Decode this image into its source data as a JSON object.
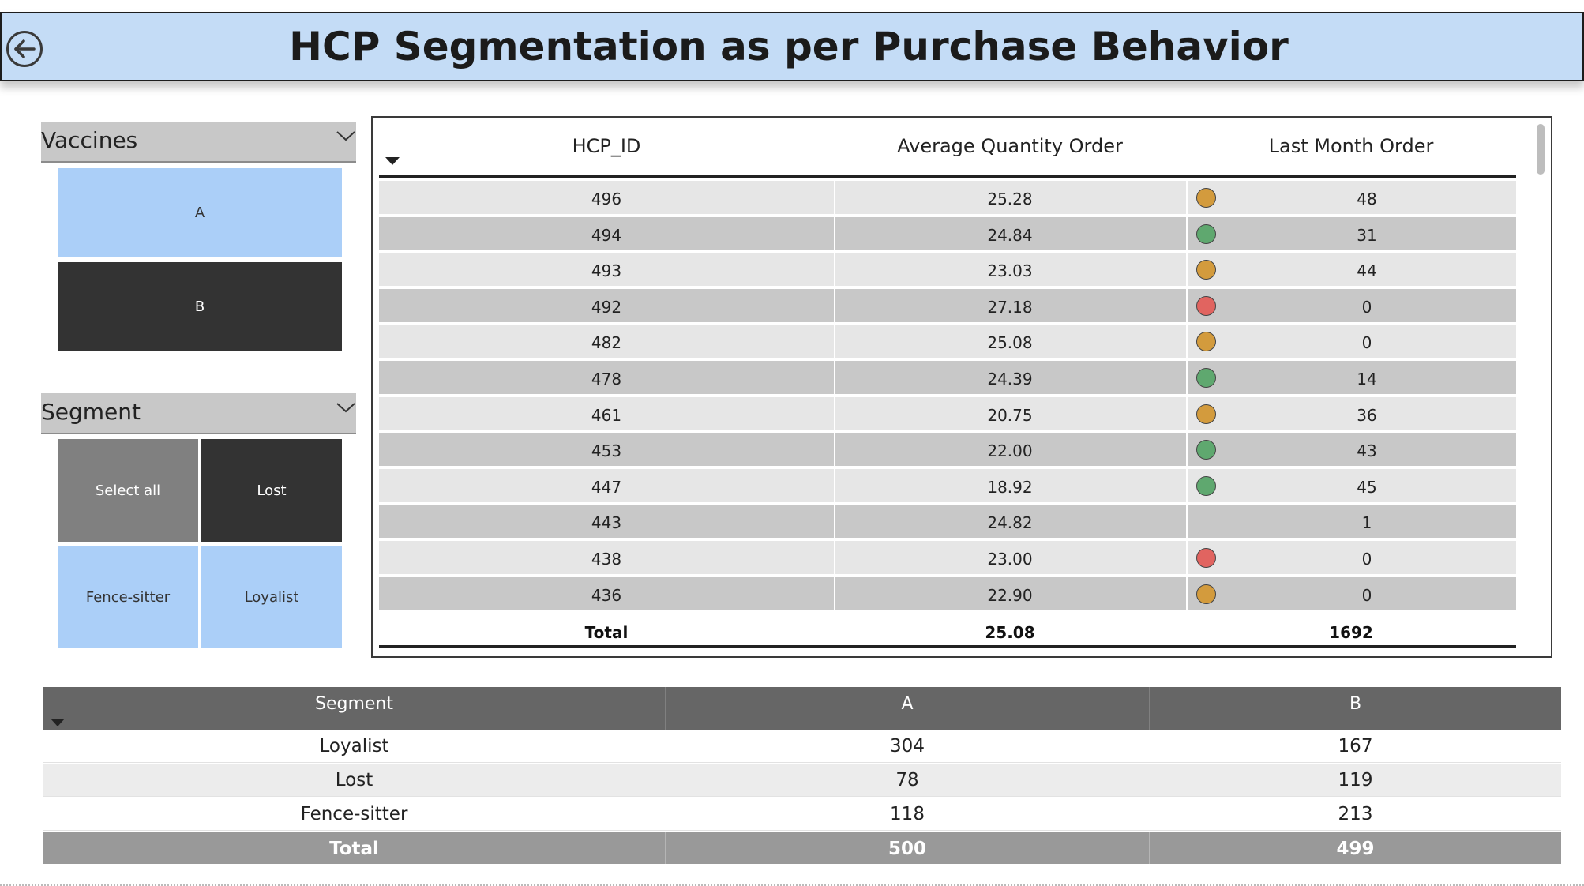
{
  "header": {
    "title": "HCP Segmentation as per Purchase Behavior",
    "back_icon": "back-arrow-circle-icon"
  },
  "vaccines_slicer": {
    "title": "Vaccines",
    "options": [
      {
        "label": "A",
        "selected": false
      },
      {
        "label": "B",
        "selected": true
      }
    ]
  },
  "segment_slicer": {
    "title": "Segment",
    "options": [
      {
        "label": "Select all",
        "state": "partial"
      },
      {
        "label": "Lost",
        "selected": true
      },
      {
        "label": "Fence-sitter",
        "selected": false
      },
      {
        "label": "Loyalist",
        "selected": false
      }
    ]
  },
  "hcp_table": {
    "columns": [
      "HCP_ID",
      "Average Quantity Order",
      "Last Month Order"
    ],
    "rows": [
      {
        "id": "496",
        "avg": "25.28",
        "status": "amber",
        "last": "48"
      },
      {
        "id": "494",
        "avg": "24.84",
        "status": "green",
        "last": "31"
      },
      {
        "id": "493",
        "avg": "23.03",
        "status": "amber",
        "last": "44"
      },
      {
        "id": "492",
        "avg": "27.18",
        "status": "red",
        "last": "0"
      },
      {
        "id": "482",
        "avg": "25.08",
        "status": "amber",
        "last": "0"
      },
      {
        "id": "478",
        "avg": "24.39",
        "status": "green",
        "last": "14"
      },
      {
        "id": "461",
        "avg": "20.75",
        "status": "amber",
        "last": "36"
      },
      {
        "id": "453",
        "avg": "22.00",
        "status": "green",
        "last": "43"
      },
      {
        "id": "447",
        "avg": "18.92",
        "status": "green",
        "last": "45"
      },
      {
        "id": "443",
        "avg": "24.82",
        "status": "",
        "last": "1"
      },
      {
        "id": "438",
        "avg": "23.00",
        "status": "red",
        "last": "0"
      },
      {
        "id": "436",
        "avg": "22.90",
        "status": "amber",
        "last": "0"
      }
    ],
    "total": {
      "label": "Total",
      "avg": "25.08",
      "last": "1692"
    },
    "status_colors": {
      "amber": "#d39b3d",
      "green": "#5fa86f",
      "red": "#e16460"
    }
  },
  "segment_table": {
    "columns": [
      "Segment",
      "A",
      "B"
    ],
    "rows": [
      {
        "segment": "Loyalist",
        "a": "304",
        "b": "167"
      },
      {
        "segment": "Lost",
        "a": "78",
        "b": "119"
      },
      {
        "segment": "Fence-sitter",
        "a": "118",
        "b": "213"
      }
    ],
    "total": {
      "label": "Total",
      "a": "500",
      "b": "499"
    }
  }
}
